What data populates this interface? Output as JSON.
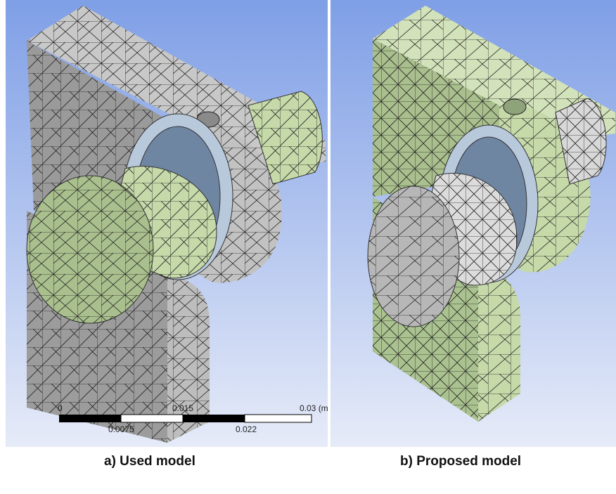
{
  "figure": {
    "panel_a": {
      "caption": "a) Used model",
      "scale_bar": {
        "top_labels": [
          "0",
          "0.015",
          "0.03 (m)"
        ],
        "bottom_labels": [
          "0.0075",
          "0.022"
        ]
      },
      "colors": {
        "frame": "#b4b4b4",
        "pin": "#c5d9a9",
        "washer": "#b9c9dc",
        "background_top": "#8da8e8",
        "background_bottom": "#dfe6f7"
      }
    },
    "panel_b": {
      "caption": "b) Proposed model",
      "colors": {
        "frame": "#c5d9a9",
        "pin": "#cfcfcf",
        "washer": "#b9c9dc",
        "background_top": "#8da8e8",
        "background_bottom": "#dfe6f7"
      }
    }
  }
}
